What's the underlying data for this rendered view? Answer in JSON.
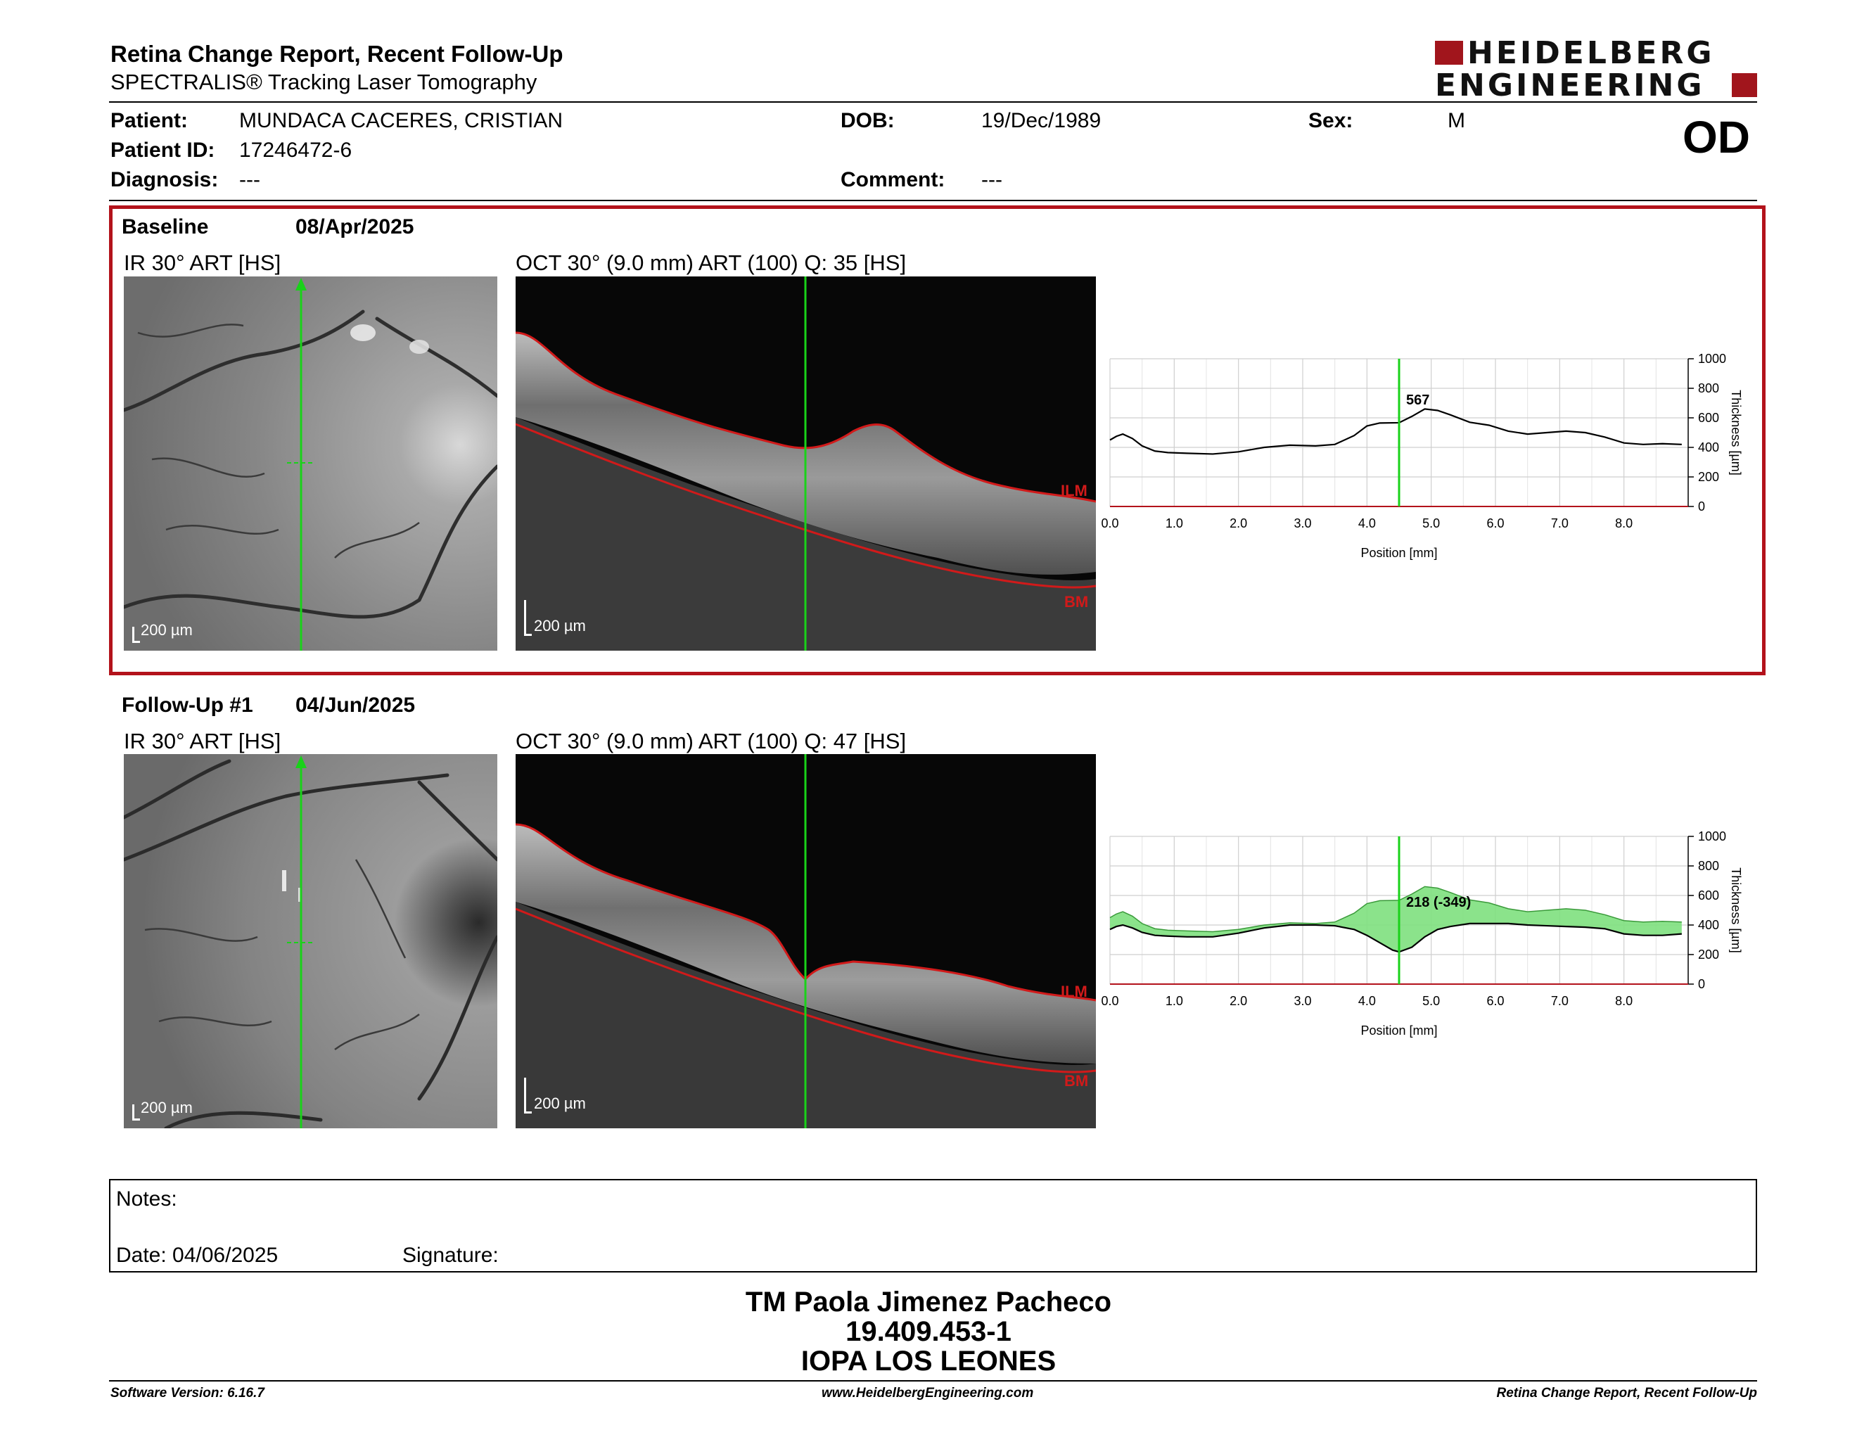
{
  "header": {
    "title": "Retina Change Report, Recent Follow-Up",
    "subtitle": "SPECTRALIS® Tracking Laser Tomography",
    "logo_line1": "HEIDELBERG",
    "logo_line2": "ENGINEERING"
  },
  "patient": {
    "patient_label": "Patient:",
    "patient_value": "MUNDACA CACERES, CRISTIAN",
    "id_label": "Patient ID:",
    "id_value": "17246472-6",
    "diagnosis_label": "Diagnosis:",
    "diagnosis_value": "---",
    "dob_label": "DOB:",
    "dob_value": "19/Dec/1989",
    "comment_label": "Comment:",
    "comment_value": "---",
    "sex_label": "Sex:",
    "sex_value": "M",
    "eye": "OD"
  },
  "baseline": {
    "label": "Baseline",
    "date": "08/Apr/2025",
    "ir_title": "IR 30° ART [HS]",
    "oct_title": "OCT 30° (9.0 mm) ART (100) Q: 35 [HS]",
    "scale_ir": "200 µm",
    "scale_oct": "200 µm",
    "ilm": "ILM",
    "bm": "BM",
    "marker_value": "567"
  },
  "followup": {
    "label": "Follow-Up #1",
    "date": "04/Jun/2025",
    "ir_title": "IR 30° ART [HS]",
    "oct_title": "OCT 30° (9.0 mm) ART (100) Q: 47 [HS]",
    "scale_ir": "200 µm",
    "scale_oct": "200 µm",
    "ilm": "ILM",
    "bm": "BM",
    "marker_value": "218 (-349)"
  },
  "chart_data": [
    {
      "type": "line",
      "xlabel": "Position [mm]",
      "ylabel": "Thickness [µm]",
      "xlim": [
        0,
        9
      ],
      "ylim": [
        0,
        1000
      ],
      "x_ticks": [
        "0.0",
        "1.0",
        "2.0",
        "3.0",
        "4.0",
        "5.0",
        "6.0",
        "7.0",
        "8.0"
      ],
      "y_ticks": [
        "0",
        "200",
        "400",
        "600",
        "800",
        "1000"
      ],
      "grid": true,
      "marker_x": 4.5,
      "marker_label": "567",
      "series": [
        {
          "x": [
            0,
            0.1,
            0.2,
            0.35,
            0.5,
            0.7,
            0.9,
            1.2,
            1.6,
            2.0,
            2.4,
            2.8,
            3.2,
            3.5,
            3.8,
            4.0,
            4.2,
            4.5,
            4.7,
            4.9,
            5.1,
            5.3,
            5.6,
            5.9,
            6.2,
            6.5,
            6.8,
            7.1,
            7.4,
            7.7,
            8.0,
            8.3,
            8.6,
            8.9
          ],
          "y": [
            450,
            475,
            490,
            460,
            410,
            375,
            365,
            360,
            355,
            370,
            400,
            415,
            410,
            420,
            480,
            545,
            565,
            567,
            610,
            660,
            650,
            620,
            570,
            550,
            510,
            490,
            500,
            510,
            500,
            470,
            430,
            420,
            425,
            420
          ]
        }
      ]
    },
    {
      "type": "area",
      "xlabel": "Position [mm]",
      "ylabel": "Thickness [µm]",
      "xlim": [
        0,
        9
      ],
      "ylim": [
        0,
        1000
      ],
      "x_ticks": [
        "0.0",
        "1.0",
        "2.0",
        "3.0",
        "4.0",
        "5.0",
        "6.0",
        "7.0",
        "8.0"
      ],
      "y_ticks": [
        "0",
        "200",
        "400",
        "600",
        "800",
        "1000"
      ],
      "grid": true,
      "marker_x": 4.5,
      "marker_label": "218 (-349)",
      "series": [
        {
          "x": [
            0,
            0.1,
            0.2,
            0.35,
            0.5,
            0.7,
            0.9,
            1.2,
            1.6,
            2.0,
            2.4,
            2.8,
            3.2,
            3.5,
            3.8,
            4.0,
            4.2,
            4.5,
            4.7,
            4.9,
            5.1,
            5.3,
            5.6,
            5.9,
            6.2,
            6.5,
            6.8,
            7.1,
            7.4,
            7.7,
            8.0,
            8.3,
            8.6,
            8.9
          ],
          "y": [
            450,
            475,
            490,
            460,
            410,
            375,
            365,
            360,
            355,
            370,
            400,
            415,
            410,
            420,
            480,
            545,
            565,
            567,
            610,
            660,
            650,
            620,
            570,
            550,
            510,
            490,
            500,
            510,
            500,
            470,
            430,
            420,
            425,
            420
          ]
        },
        {
          "x": [
            0,
            0.1,
            0.2,
            0.35,
            0.5,
            0.7,
            0.9,
            1.2,
            1.6,
            2.0,
            2.4,
            2.8,
            3.2,
            3.5,
            3.8,
            4.0,
            4.2,
            4.4,
            4.5,
            4.7,
            4.9,
            5.1,
            5.3,
            5.6,
            5.9,
            6.2,
            6.5,
            6.8,
            7.1,
            7.4,
            7.7,
            8.0,
            8.3,
            8.6,
            8.9
          ],
          "y": [
            370,
            390,
            400,
            380,
            350,
            330,
            325,
            320,
            320,
            345,
            380,
            400,
            400,
            395,
            370,
            330,
            280,
            230,
            218,
            250,
            320,
            370,
            390,
            410,
            410,
            410,
            400,
            395,
            390,
            385,
            375,
            340,
            330,
            330,
            340
          ]
        }
      ]
    }
  ],
  "notes": {
    "notes_label": "Notes:",
    "date_label": "Date: 04/06/2025",
    "signature_label": "Signature:"
  },
  "signature": {
    "name": "TM Paola Jimenez Pacheco",
    "id": "19.409.453-1",
    "center": "IOPA LOS LEONES"
  },
  "footer": {
    "software": "Software Version: 6.16.7",
    "website": "www.HeidelbergEngineering.com",
    "report": "Retina Change Report, Recent Follow-Up"
  },
  "colors": {
    "frame": "#b3121b",
    "marker": "#19d219",
    "fill": "#7ee07e",
    "seg": "#d11a1a"
  }
}
